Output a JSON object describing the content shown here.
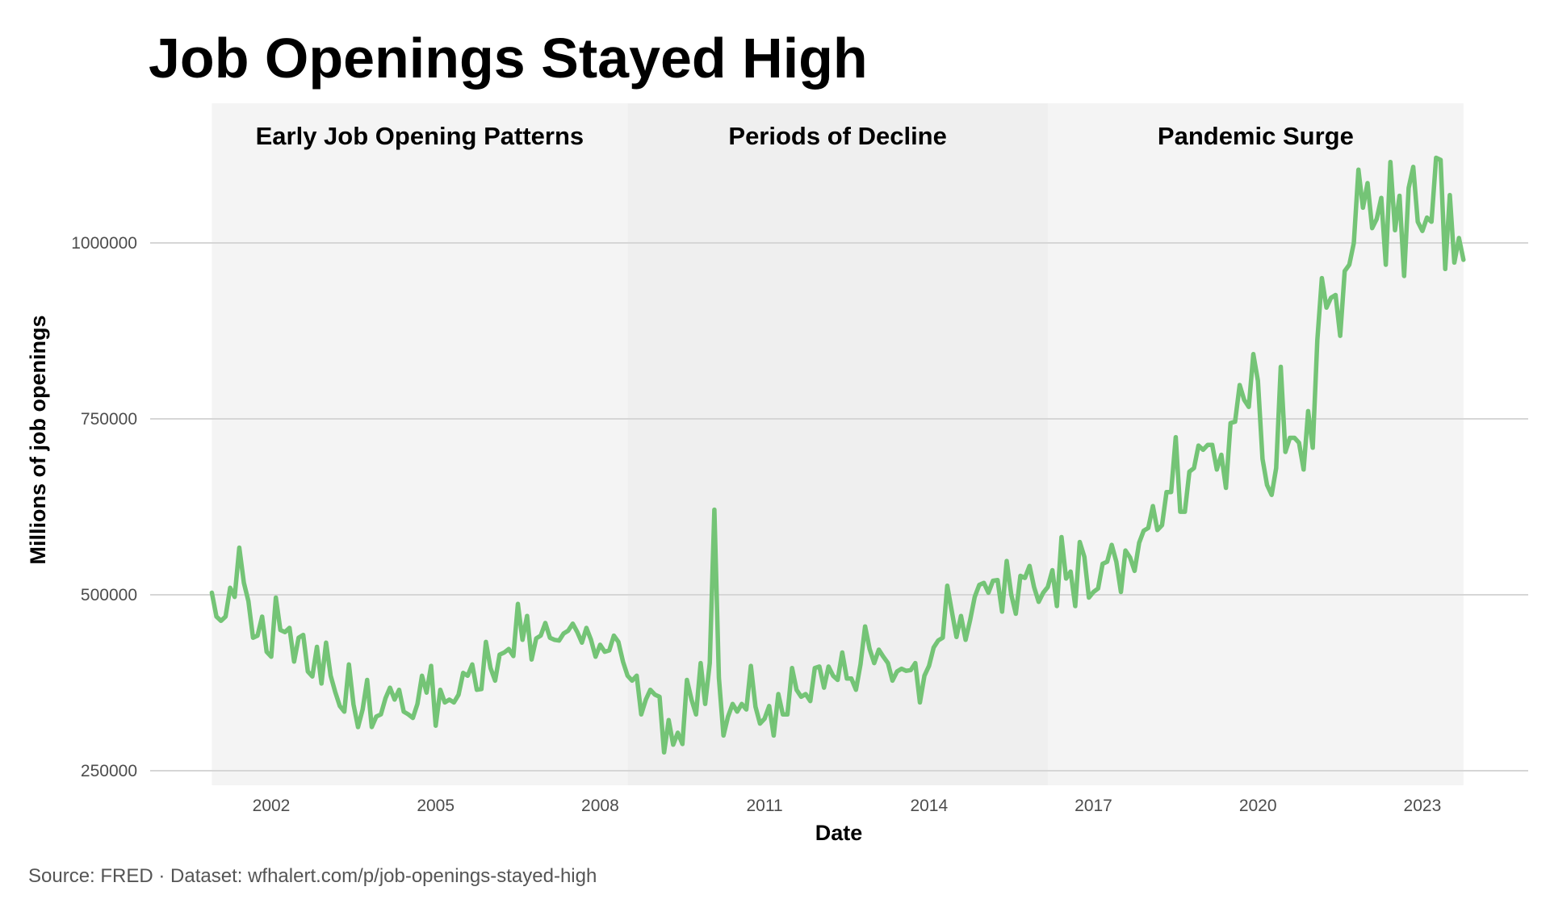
{
  "chart_data": {
    "type": "line",
    "title": "Job Openings Stayed High",
    "xlabel": "Date",
    "ylabel": "Millions of job openings",
    "caption": "Source: FRED · Dataset: wfhalert.com/p/job-openings-stayed-high",
    "x_ticks": [
      "2002",
      "2005",
      "2008",
      "2011",
      "2014",
      "2017",
      "2020",
      "2023"
    ],
    "y_ticks": [
      "250000",
      "500000",
      "750000",
      "1000000"
    ],
    "ylim": [
      225000,
      1160000
    ],
    "grid": "horizontal major",
    "legend": "none",
    "line_color": "#74c476",
    "regions": [
      {
        "label": "Early Job Opening Patterns",
        "start": "2000-12",
        "end": "2008-07",
        "color": "#f4f4f4"
      },
      {
        "label": "Periods of Decline",
        "start": "2008-07",
        "end": "2016-03",
        "color": "#efefef"
      },
      {
        "label": "Pandemic Surge",
        "start": "2016-03",
        "end": "2023-10",
        "color": "#f4f4f4"
      }
    ],
    "monthly_values_by_year": {
      "2000": [
        503000
      ],
      "2001": [
        469000,
        463000,
        469000,
        510000,
        497000,
        567000,
        517000,
        491000,
        439000,
        442000,
        469000,
        419000
      ],
      "2002": [
        412000,
        496000,
        450000,
        447000,
        453000,
        405000,
        439000,
        443000,
        391000,
        384000,
        426000,
        374000
      ],
      "2003": [
        432000,
        385000,
        362000,
        342000,
        334000,
        401000,
        344000,
        312000,
        337000,
        379000,
        312000,
        327000
      ],
      "2004": [
        330000,
        353000,
        368000,
        351000,
        365000,
        334000,
        330000,
        325000,
        345000,
        385000,
        361000,
        399000
      ],
      "2005": [
        314000,
        365000,
        347000,
        351000,
        347000,
        358000,
        389000,
        385000,
        401000,
        365000,
        366000,
        433000
      ],
      "2006": [
        396000,
        378000,
        415000,
        418000,
        423000,
        413000,
        487000,
        436000,
        470000,
        408000,
        438000,
        442000
      ],
      "2007": [
        460000,
        439000,
        436000,
        435000,
        445000,
        449000,
        459000,
        447000,
        432000,
        453000,
        436000,
        412000
      ],
      "2008": [
        429000,
        419000,
        421000,
        442000,
        433000,
        405000,
        385000,
        378000,
        385000,
        330000,
        351000,
        365000
      ],
      "2009": [
        358000,
        355000,
        276000,
        322000,
        287000,
        304000,
        288000,
        379000,
        351000,
        330000,
        403000,
        345000
      ],
      "2010": [
        403000,
        621000,
        382000,
        300000,
        327000,
        345000,
        334000,
        345000,
        337000,
        399000,
        341000,
        317000
      ],
      "2011": [
        324000,
        342000,
        300000,
        359000,
        330000,
        330000,
        396000,
        365000,
        355000,
        359000,
        349000,
        396000
      ],
      "2012": [
        398000,
        368000,
        398000,
        385000,
        379000,
        418000,
        381000,
        381000,
        365000,
        401000,
        455000,
        423000
      ],
      "2013": [
        403000,
        422000,
        412000,
        403000,
        378000,
        391000,
        395000,
        392000,
        393000,
        403000,
        347000,
        385000
      ],
      "2014": [
        399000,
        425000,
        435000,
        439000,
        513000,
        476000,
        440000,
        470000,
        436000,
        464000,
        497000,
        514000
      ],
      "2015": [
        517000,
        503000,
        520000,
        521000,
        476000,
        548000,
        500000,
        473000,
        527000,
        524000,
        541000,
        511000
      ],
      "2016": [
        490000,
        503000,
        511000,
        535000,
        484000,
        582000,
        523000,
        533000,
        484000,
        575000,
        554000,
        496000
      ],
      "2017": [
        504000,
        509000,
        544000,
        547000,
        571000,
        547000,
        504000,
        563000,
        553000,
        534000,
        574000,
        591000
      ],
      "2018": [
        595000,
        626000,
        592000,
        599000,
        646000,
        646000,
        724000,
        618000,
        618000,
        675000,
        680000,
        712000
      ],
      "2019": [
        706000,
        713000,
        713000,
        678000,
        699000,
        652000,
        744000,
        746000,
        798000,
        777000,
        767000,
        842000
      ],
      "2020": [
        804000,
        693000,
        656000,
        642000,
        680000,
        824000,
        703000,
        723000,
        723000,
        716000,
        678000,
        761000
      ],
      "2021": [
        709000,
        862000,
        950000,
        908000,
        922000,
        926000,
        868000,
        960000,
        969000,
        1000000,
        1104000,
        1050000
      ],
      "2022": [
        1085000,
        1021000,
        1034000,
        1064000,
        969000,
        1115000,
        1018000,
        1067000,
        953000,
        1078000,
        1108000,
        1030000
      ],
      "2023": [
        1017000,
        1036000,
        1030000,
        1121000,
        1118000,
        963000,
        1068000,
        972000,
        1007000,
        976000
      ]
    }
  }
}
